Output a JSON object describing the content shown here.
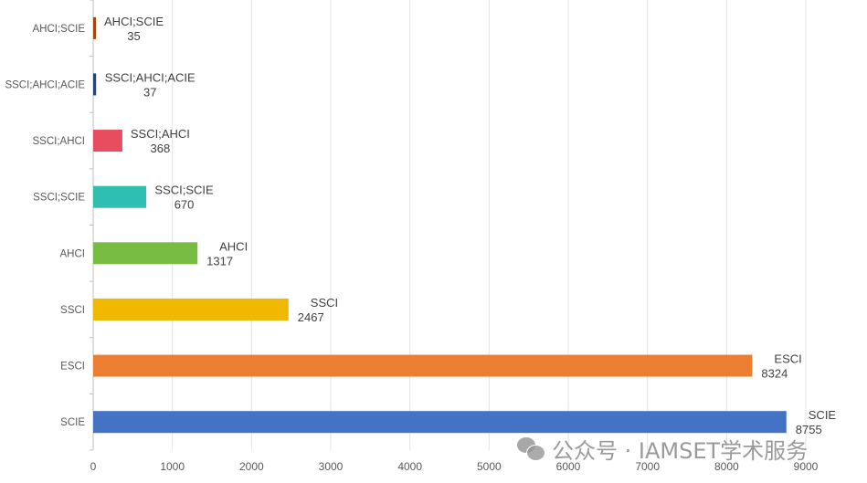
{
  "chart_data": {
    "type": "bar",
    "orientation": "horizontal",
    "categories": [
      "SCIE",
      "ESCI",
      "SSCI",
      "AHCI",
      "SSCI;SCIE",
      "SSCI;AHCI",
      "SSCI;AHCI;ACIE",
      "AHCI;SCIE"
    ],
    "values": [
      8755,
      8324,
      2467,
      1317,
      670,
      368,
      37,
      35
    ],
    "colors": [
      "#4472c4",
      "#ed7d31",
      "#f0b800",
      "#78bd43",
      "#2ebfb1",
      "#e84c5f",
      "#264478",
      "#9e480e"
    ],
    "xlim": [
      0,
      9000
    ],
    "xticks": [
      0,
      1000,
      2000,
      3000,
      4000,
      5000,
      6000,
      7000,
      8000,
      9000
    ],
    "grid": true,
    "data_labels": "category and value",
    "title": "",
    "xlabel": "",
    "ylabel": ""
  },
  "watermark": "公众号 · IAMSET学术服务"
}
